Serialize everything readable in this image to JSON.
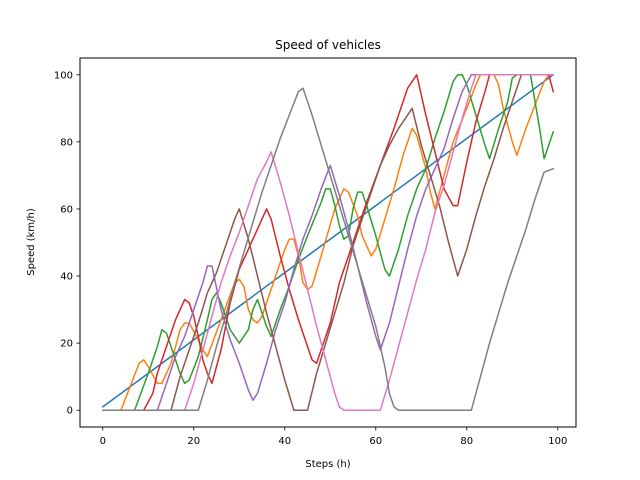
{
  "chart_data": {
    "type": "line",
    "title": "Speed of vehicles",
    "xlabel": "Steps (h)",
    "ylabel": "Speed (km/h)",
    "xlim": [
      -5,
      104
    ],
    "ylim": [
      -5,
      105
    ],
    "xticks": [
      0,
      20,
      40,
      60,
      80,
      100
    ],
    "yticks": [
      0,
      20,
      40,
      60,
      80,
      100
    ],
    "grid": false,
    "legend": "none",
    "series": [
      {
        "color": "#1f77b4",
        "points": [
          [
            0,
            1
          ],
          [
            99,
            100
          ]
        ]
      },
      {
        "color": "#ff7f0e",
        "points": [
          [
            0,
            0
          ],
          [
            4,
            0
          ],
          [
            6,
            7
          ],
          [
            8,
            14
          ],
          [
            9,
            15
          ],
          [
            10,
            13
          ],
          [
            12,
            8
          ],
          [
            13,
            8
          ],
          [
            15,
            14
          ],
          [
            17,
            24
          ],
          [
            18,
            26
          ],
          [
            19,
            26
          ],
          [
            21,
            21
          ],
          [
            22,
            18
          ],
          [
            23,
            16
          ],
          [
            26,
            27
          ],
          [
            29,
            38
          ],
          [
            30,
            39
          ],
          [
            31,
            37
          ],
          [
            32,
            30
          ],
          [
            33,
            27
          ],
          [
            34,
            26
          ],
          [
            35,
            28
          ],
          [
            38,
            40
          ],
          [
            40,
            48
          ],
          [
            41,
            51
          ],
          [
            42,
            51
          ],
          [
            43,
            46
          ],
          [
            44,
            38
          ],
          [
            45,
            36
          ],
          [
            46,
            37
          ],
          [
            48,
            46
          ],
          [
            51,
            60
          ],
          [
            53,
            66
          ],
          [
            54,
            65
          ],
          [
            56,
            58
          ],
          [
            57,
            52
          ],
          [
            58,
            49
          ],
          [
            59,
            46
          ],
          [
            60,
            48
          ],
          [
            62,
            57
          ],
          [
            64,
            66
          ],
          [
            66,
            76
          ],
          [
            68,
            84
          ],
          [
            69,
            82
          ],
          [
            70,
            77
          ],
          [
            71,
            72
          ],
          [
            72,
            65
          ],
          [
            73,
            60
          ],
          [
            75,
            70
          ],
          [
            77,
            80
          ],
          [
            80,
            90
          ],
          [
            82,
            97
          ],
          [
            83,
            100
          ],
          [
            86,
            100
          ],
          [
            87,
            97
          ],
          [
            88,
            90
          ],
          [
            89,
            85
          ],
          [
            90,
            80
          ],
          [
            91,
            76
          ],
          [
            93,
            84
          ],
          [
            95,
            91
          ],
          [
            97,
            98
          ],
          [
            98,
            100
          ],
          [
            99,
            100
          ]
        ]
      },
      {
        "color": "#2ca02c",
        "points": [
          [
            0,
            0
          ],
          [
            7,
            0
          ],
          [
            10,
            11
          ],
          [
            12,
            19
          ],
          [
            13,
            24
          ],
          [
            14,
            23
          ],
          [
            15,
            19
          ],
          [
            16,
            15
          ],
          [
            17,
            11
          ],
          [
            18,
            8
          ],
          [
            19,
            9
          ],
          [
            21,
            16
          ],
          [
            23,
            27
          ],
          [
            24,
            33
          ],
          [
            25,
            35
          ],
          [
            26,
            32
          ],
          [
            28,
            24
          ],
          [
            30,
            20
          ],
          [
            32,
            24
          ],
          [
            33,
            30
          ],
          [
            34,
            33
          ],
          [
            36,
            25
          ],
          [
            37,
            22
          ],
          [
            39,
            30
          ],
          [
            41,
            37
          ],
          [
            43,
            45
          ],
          [
            45,
            52
          ],
          [
            48,
            62
          ],
          [
            49,
            66
          ],
          [
            50,
            66
          ],
          [
            51,
            61
          ],
          [
            52,
            55
          ],
          [
            53,
            51
          ],
          [
            54,
            52
          ],
          [
            55,
            60
          ],
          [
            56,
            65
          ],
          [
            57,
            65
          ],
          [
            58,
            61
          ],
          [
            60,
            52
          ],
          [
            62,
            42
          ],
          [
            63,
            40
          ],
          [
            65,
            48
          ],
          [
            67,
            58
          ],
          [
            69,
            66
          ],
          [
            71,
            72
          ],
          [
            73,
            81
          ],
          [
            75,
            89
          ],
          [
            77,
            98
          ],
          [
            78,
            100
          ],
          [
            79,
            100
          ],
          [
            80,
            97
          ],
          [
            82,
            88
          ],
          [
            84,
            79
          ],
          [
            85,
            75
          ],
          [
            87,
            84
          ],
          [
            89,
            92
          ],
          [
            90,
            99
          ],
          [
            91,
            100
          ],
          [
            94,
            100
          ],
          [
            96,
            84
          ],
          [
            97,
            75
          ],
          [
            99,
            83
          ]
        ]
      },
      {
        "color": "#d62728",
        "points": [
          [
            0,
            0
          ],
          [
            9,
            0
          ],
          [
            11,
            5
          ],
          [
            12,
            11
          ],
          [
            14,
            19
          ],
          [
            16,
            27
          ],
          [
            18,
            33
          ],
          [
            19,
            32
          ],
          [
            20,
            28
          ],
          [
            21,
            22
          ],
          [
            22,
            15
          ],
          [
            23,
            11
          ],
          [
            24,
            8
          ],
          [
            26,
            18
          ],
          [
            28,
            32
          ],
          [
            30,
            42
          ],
          [
            33,
            51
          ],
          [
            36,
            60
          ],
          [
            37,
            57
          ],
          [
            39,
            46
          ],
          [
            41,
            36
          ],
          [
            43,
            27
          ],
          [
            45,
            19
          ],
          [
            46,
            15
          ],
          [
            47,
            14
          ],
          [
            50,
            26
          ],
          [
            52,
            38
          ],
          [
            55,
            50
          ],
          [
            58,
            62
          ],
          [
            61,
            73
          ],
          [
            64,
            84
          ],
          [
            67,
            96
          ],
          [
            68,
            98
          ],
          [
            69,
            100
          ],
          [
            71,
            88
          ],
          [
            73,
            77
          ],
          [
            75,
            66
          ],
          [
            77,
            61
          ],
          [
            78,
            61
          ],
          [
            80,
            74
          ],
          [
            82,
            86
          ],
          [
            84,
            95
          ],
          [
            85,
            100
          ],
          [
            93,
            100
          ],
          [
            95,
            100
          ],
          [
            97,
            100
          ],
          [
            98,
            100
          ],
          [
            99,
            95
          ]
        ]
      },
      {
        "color": "#9467bd",
        "points": [
          [
            0,
            0
          ],
          [
            12,
            0
          ],
          [
            14,
            8
          ],
          [
            16,
            16
          ],
          [
            18,
            22
          ],
          [
            20,
            30
          ],
          [
            22,
            38
          ],
          [
            23,
            43
          ],
          [
            24,
            43
          ],
          [
            26,
            30
          ],
          [
            28,
            21
          ],
          [
            30,
            14
          ],
          [
            32,
            6
          ],
          [
            33,
            3
          ],
          [
            34,
            5
          ],
          [
            36,
            14
          ],
          [
            38,
            24
          ],
          [
            40,
            32
          ],
          [
            42,
            42
          ],
          [
            44,
            51
          ],
          [
            46,
            58
          ],
          [
            48,
            66
          ],
          [
            50,
            73
          ],
          [
            52,
            64
          ],
          [
            54,
            54
          ],
          [
            56,
            43
          ],
          [
            58,
            32
          ],
          [
            60,
            22
          ],
          [
            61,
            18
          ],
          [
            63,
            26
          ],
          [
            65,
            37
          ],
          [
            67,
            48
          ],
          [
            69,
            58
          ],
          [
            71,
            66
          ],
          [
            73,
            72
          ],
          [
            75,
            78
          ],
          [
            77,
            87
          ],
          [
            79,
            95
          ],
          [
            81,
            100
          ],
          [
            99,
            100
          ]
        ]
      },
      {
        "color": "#8c564b",
        "points": [
          [
            0,
            0
          ],
          [
            15,
            0
          ],
          [
            17,
            10
          ],
          [
            19,
            18
          ],
          [
            21,
            26
          ],
          [
            23,
            35
          ],
          [
            25,
            41
          ],
          [
            27,
            49
          ],
          [
            29,
            57
          ],
          [
            30,
            60
          ],
          [
            32,
            51
          ],
          [
            34,
            40
          ],
          [
            36,
            29
          ],
          [
            38,
            19
          ],
          [
            40,
            9
          ],
          [
            42,
            0
          ],
          [
            45,
            0
          ],
          [
            47,
            11
          ],
          [
            49,
            20
          ],
          [
            51,
            29
          ],
          [
            53,
            38
          ],
          [
            55,
            49
          ],
          [
            57,
            57
          ],
          [
            59,
            65
          ],
          [
            61,
            73
          ],
          [
            63,
            79
          ],
          [
            65,
            84
          ],
          [
            67,
            88
          ],
          [
            68,
            90
          ],
          [
            70,
            79
          ],
          [
            72,
            70
          ],
          [
            74,
            61
          ],
          [
            76,
            50
          ],
          [
            78,
            40
          ],
          [
            80,
            48
          ],
          [
            82,
            58
          ],
          [
            84,
            67
          ],
          [
            86,
            75
          ],
          [
            88,
            84
          ],
          [
            90,
            92
          ],
          [
            92,
            100
          ],
          [
            99,
            100
          ]
        ]
      },
      {
        "color": "#e377c2",
        "points": [
          [
            0,
            0
          ],
          [
            17,
            0
          ],
          [
            18,
            0
          ],
          [
            20,
            8
          ],
          [
            22,
            18
          ],
          [
            24,
            28
          ],
          [
            26,
            38
          ],
          [
            28,
            46
          ],
          [
            30,
            53
          ],
          [
            32,
            61
          ],
          [
            34,
            69
          ],
          [
            36,
            74
          ],
          [
            37,
            77
          ],
          [
            39,
            68
          ],
          [
            41,
            58
          ],
          [
            43,
            47
          ],
          [
            45,
            36
          ],
          [
            47,
            25
          ],
          [
            49,
            15
          ],
          [
            51,
            5
          ],
          [
            52,
            1
          ],
          [
            53,
            0
          ],
          [
            61,
            0
          ],
          [
            63,
            9
          ],
          [
            65,
            19
          ],
          [
            67,
            29
          ],
          [
            69,
            39
          ],
          [
            71,
            48
          ],
          [
            73,
            59
          ],
          [
            75,
            67
          ],
          [
            77,
            77
          ],
          [
            79,
            87
          ],
          [
            81,
            96
          ],
          [
            82,
            100
          ],
          [
            99,
            100
          ]
        ]
      },
      {
        "color": "#7f7f7f",
        "points": [
          [
            0,
            0
          ],
          [
            20,
            0
          ],
          [
            21,
            0
          ],
          [
            23,
            9
          ],
          [
            25,
            19
          ],
          [
            27,
            28
          ],
          [
            29,
            38
          ],
          [
            31,
            47
          ],
          [
            33,
            56
          ],
          [
            35,
            65
          ],
          [
            37,
            73
          ],
          [
            39,
            81
          ],
          [
            41,
            88
          ],
          [
            43,
            95
          ],
          [
            44,
            96
          ],
          [
            46,
            88
          ],
          [
            48,
            79
          ],
          [
            50,
            70
          ],
          [
            52,
            61
          ],
          [
            54,
            52
          ],
          [
            56,
            43
          ],
          [
            58,
            34
          ],
          [
            60,
            25
          ],
          [
            62,
            13
          ],
          [
            63,
            5
          ],
          [
            64,
            1
          ],
          [
            65,
            0
          ],
          [
            80,
            0
          ],
          [
            81,
            0
          ],
          [
            83,
            10
          ],
          [
            85,
            20
          ],
          [
            87,
            29
          ],
          [
            89,
            38
          ],
          [
            91,
            46
          ],
          [
            93,
            54
          ],
          [
            95,
            63
          ],
          [
            97,
            71
          ],
          [
            99,
            72
          ]
        ]
      }
    ]
  }
}
